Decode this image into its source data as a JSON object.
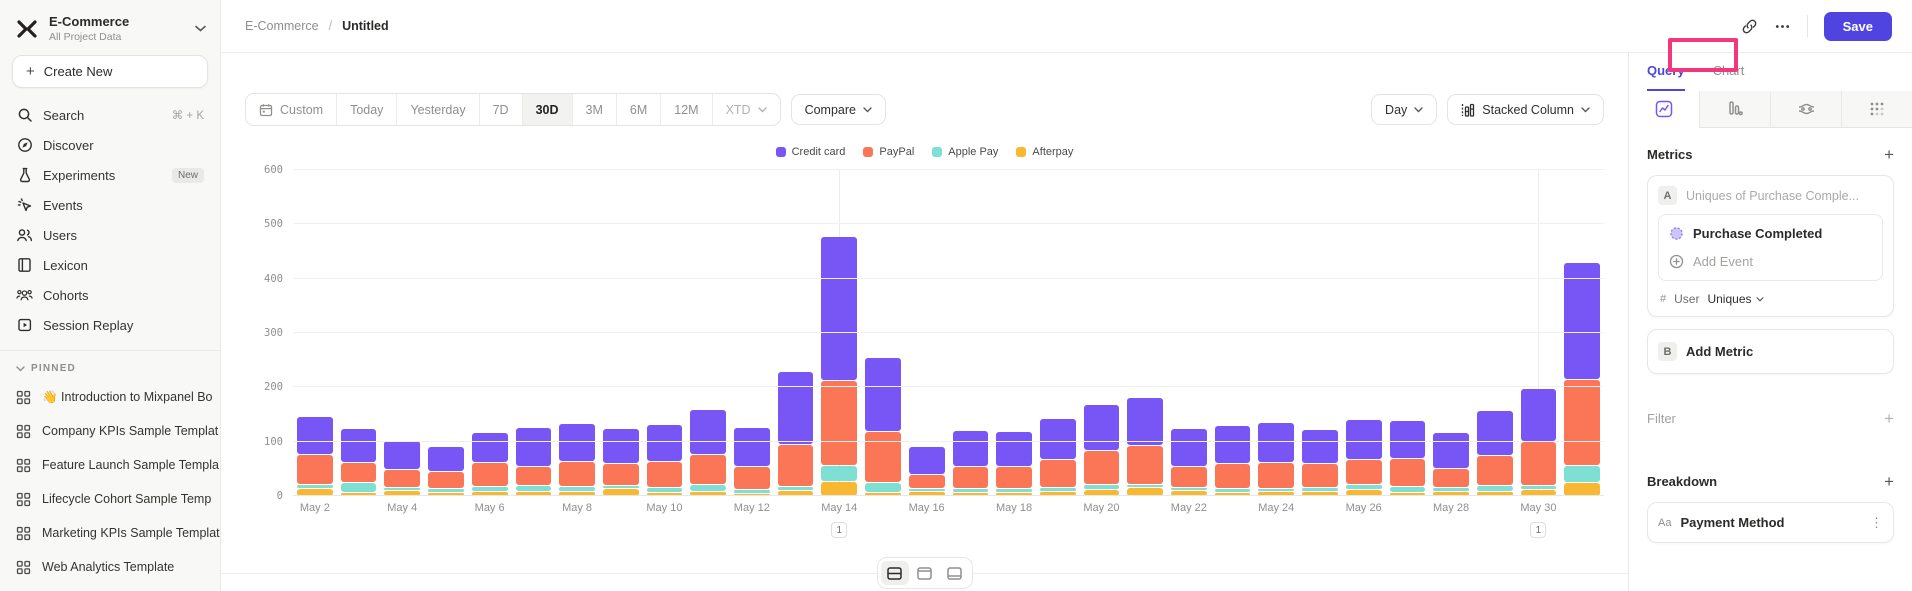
{
  "sidebar": {
    "project": {
      "name": "E-Commerce",
      "subtitle": "All Project Data"
    },
    "create_new_label": "Create New",
    "nav": [
      {
        "label": "Search",
        "icon": "search-icon",
        "shortcut": "⌘ + K"
      },
      {
        "label": "Discover",
        "icon": "compass-icon"
      },
      {
        "label": "Experiments",
        "icon": "flask-icon",
        "badge": "New"
      },
      {
        "label": "Events",
        "icon": "events-icon"
      },
      {
        "label": "Users",
        "icon": "users-icon"
      },
      {
        "label": "Lexicon",
        "icon": "book-icon"
      },
      {
        "label": "Cohorts",
        "icon": "cohorts-icon"
      },
      {
        "label": "Session Replay",
        "icon": "replay-icon"
      }
    ],
    "pinned_header": "PINNED",
    "pinned": [
      "👋 Introduction to Mixpanel Bo",
      "Company KPIs Sample Templat",
      "Feature Launch Sample Templa",
      "Lifecycle Cohort Sample Temp",
      "Marketing KPIs Sample Templat",
      "Web Analytics Template"
    ]
  },
  "topbar": {
    "breadcrumb_root": "E-Commerce",
    "breadcrumb_sep": "/",
    "breadcrumb_current": "Untitled",
    "save_label": "Save"
  },
  "toolbar": {
    "date_ranges": [
      "Custom",
      "Today",
      "Yesterday",
      "7D",
      "30D",
      "3M",
      "6M",
      "12M",
      "XTD"
    ],
    "active_range": "30D",
    "compare_label": "Compare",
    "granularity_label": "Day",
    "chart_type_label": "Stacked Column"
  },
  "chart_data": {
    "type": "bar",
    "stacked": true,
    "title": "",
    "ylim": [
      0,
      600
    ],
    "yticks": [
      0,
      100,
      200,
      300,
      400,
      500,
      600
    ],
    "x": [
      "May 2",
      "May 3",
      "May 4",
      "May 5",
      "May 6",
      "May 7",
      "May 8",
      "May 9",
      "May 10",
      "May 11",
      "May 12",
      "May 13",
      "May 14",
      "May 15",
      "May 16",
      "May 17",
      "May 18",
      "May 19",
      "May 20",
      "May 21",
      "May 22",
      "May 23",
      "May 24",
      "May 25",
      "May 26",
      "May 27",
      "May 28",
      "May 29",
      "May 30",
      "May 31"
    ],
    "tick_every": 2,
    "legend_position": "top-center",
    "series": [
      {
        "name": "Credit card",
        "color": "#7856f6",
        "values": [
          70,
          62,
          55,
          46,
          55,
          72,
          70,
          64,
          69,
          82,
          72,
          135,
          265,
          135,
          52,
          66,
          64,
          74,
          86,
          90,
          71,
          69,
          73,
          64,
          73,
          70,
          66,
          83,
          97,
          215
        ]
      },
      {
        "name": "PayPal",
        "color": "#fb7557",
        "values": [
          55,
          38,
          32,
          31,
          44,
          36,
          46,
          42,
          47,
          55,
          42,
          76,
          155,
          95,
          26,
          40,
          42,
          52,
          62,
          70,
          38,
          46,
          48,
          43,
          47,
          51,
          35,
          55,
          80,
          158
        ]
      },
      {
        "name": "Apple Pay",
        "color": "#7ee0d2",
        "values": [
          8,
          18,
          6,
          7,
          9,
          10,
          9,
          5,
          9,
          14,
          7,
          8,
          30,
          17,
          5,
          7,
          6,
          8,
          9,
          7,
          6,
          7,
          6,
          8,
          9,
          11,
          8,
          11,
          9,
          32
        ]
      },
      {
        "name": "Afterpay",
        "color": "#f8b831",
        "values": [
          15,
          7,
          11,
          8,
          10,
          10,
          9,
          14,
          8,
          9,
          4,
          11,
          28,
          8,
          9,
          8,
          8,
          9,
          13,
          16,
          11,
          8,
          9,
          9,
          13,
          8,
          9,
          9,
          12,
          25
        ]
      }
    ],
    "annotations": [
      {
        "label": "1",
        "date": "May 14",
        "bar_index": 12
      },
      {
        "label": "1",
        "date": "May 30",
        "bar_index": 28
      }
    ]
  },
  "right_panel": {
    "tabs": [
      "Query",
      "Chart"
    ],
    "active_tab": "Query",
    "metrics_title": "Metrics",
    "metric_a": {
      "badge": "A",
      "placeholder": "Uniques of Purchase Comple...",
      "event_name": "Purchase Completed",
      "add_event_label": "Add Event",
      "hash": "#",
      "entity": "User",
      "aggregation": "Uniques"
    },
    "metric_b": {
      "badge": "B",
      "label": "Add Metric"
    },
    "filter_label": "Filter",
    "breakdown_label": "Breakdown",
    "breakdown_item": {
      "prefix": "Aa",
      "label": "Payment Method"
    }
  },
  "colors": {
    "accent_purple": "#4f44e0",
    "bar_purple": "#7856f6",
    "bar_salmon": "#fb7557",
    "bar_teal": "#7ee0d2",
    "bar_amber": "#f8b831",
    "highlight_pink": "#f2377d"
  }
}
